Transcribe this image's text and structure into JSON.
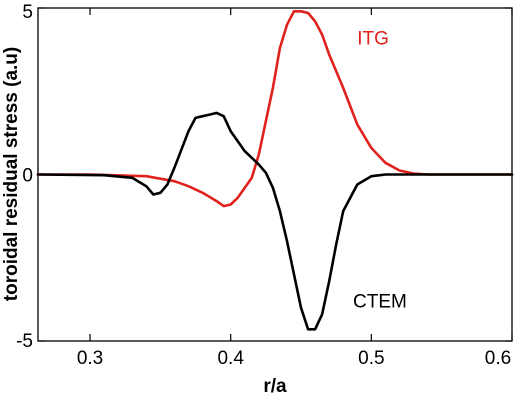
{
  "chart_data": {
    "type": "line",
    "xlabel": "r/a",
    "ylabel": "toroidal residual stress (a.u)",
    "xlim": [
      0.263,
      0.6
    ],
    "ylim": [
      -5,
      5
    ],
    "xticks": [
      0.3,
      0.4,
      0.5,
      0.6
    ],
    "xtick_labels": [
      "0.3",
      "0.4",
      "0.5",
      "0.6"
    ],
    "yticks": [
      -5,
      0,
      5
    ],
    "ytick_labels": [
      "-5",
      "0",
      "5"
    ],
    "grid": false,
    "legend": "none",
    "annotations": [
      {
        "text": "ITG",
        "color": "#e0221c",
        "x": 0.49,
        "y": 3.9
      },
      {
        "text": "CTEM",
        "color": "#000000",
        "x": 0.487,
        "y": -4.0
      }
    ],
    "series": [
      {
        "label": "ITG",
        "color": "#e0221c",
        "x": [
          0.263,
          0.3,
          0.34,
          0.36,
          0.37,
          0.38,
          0.39,
          0.395,
          0.4,
          0.405,
          0.41,
          0.415,
          0.42,
          0.43,
          0.435,
          0.44,
          0.445,
          0.45,
          0.455,
          0.46,
          0.465,
          0.47,
          0.48,
          0.49,
          0.5,
          0.51,
          0.52,
          0.53,
          0.54,
          0.55,
          0.6
        ],
        "y": [
          0.0,
          0.0,
          -0.05,
          -0.2,
          -0.35,
          -0.55,
          -0.8,
          -0.95,
          -0.9,
          -0.7,
          -0.4,
          -0.1,
          0.6,
          2.6,
          3.8,
          4.5,
          4.9,
          4.9,
          4.85,
          4.6,
          4.2,
          3.6,
          2.6,
          1.5,
          0.8,
          0.35,
          0.12,
          0.03,
          0.0,
          0.0,
          0.0
        ]
      },
      {
        "label": "CTEM",
        "color": "#000000",
        "x": [
          0.263,
          0.31,
          0.33,
          0.34,
          0.345,
          0.35,
          0.355,
          0.36,
          0.37,
          0.375,
          0.38,
          0.385,
          0.39,
          0.395,
          0.4,
          0.41,
          0.42,
          0.425,
          0.43,
          0.435,
          0.44,
          0.445,
          0.45,
          0.455,
          0.46,
          0.465,
          0.47,
          0.475,
          0.48,
          0.49,
          0.5,
          0.51,
          0.52,
          0.6
        ],
        "y": [
          0.0,
          -0.02,
          -0.1,
          -0.35,
          -0.6,
          -0.55,
          -0.3,
          0.2,
          1.3,
          1.7,
          1.75,
          1.8,
          1.85,
          1.75,
          1.3,
          0.7,
          0.3,
          0.05,
          -0.4,
          -1.1,
          -2.0,
          -3.0,
          -4.0,
          -4.65,
          -4.65,
          -4.2,
          -3.2,
          -2.1,
          -1.1,
          -0.3,
          -0.05,
          0.0,
          0.0,
          0.0
        ]
      }
    ]
  }
}
